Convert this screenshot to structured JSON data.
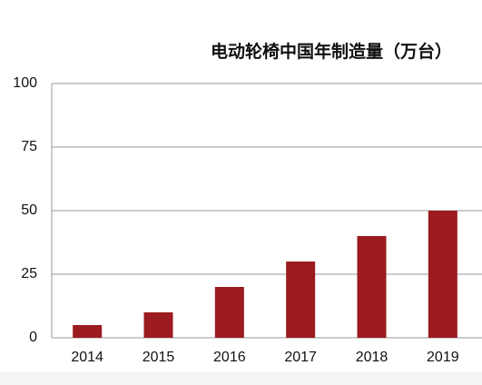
{
  "chart_data": {
    "type": "bar",
    "title": "电动轮椅中国年制造量（万台）",
    "categories": [
      "2014",
      "2015",
      "2016",
      "2017",
      "2018",
      "2019"
    ],
    "values": [
      5,
      10,
      20,
      30,
      40,
      50
    ],
    "color": "#9b1b1f",
    "ylim": [
      0,
      100
    ],
    "yticks": [
      0,
      25,
      50,
      75,
      100
    ],
    "grid": true
  }
}
